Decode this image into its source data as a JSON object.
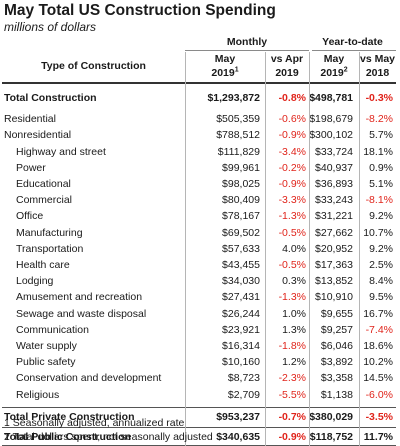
{
  "title": "May Total US Construction Spending",
  "subtitle": "millions of dollars",
  "header": {
    "type_label": "Type of Construction",
    "monthly_label": "Monthly",
    "ytd_label": "Year-to-date",
    "col1_line1": "May",
    "col1_line2": "2019",
    "col1_sup": "1",
    "col2_line1": "vs Apr",
    "col2_line2": "2019",
    "col3_line1": "May",
    "col3_line2": "2019",
    "col3_sup": "2",
    "col4_line1": "vs May",
    "col4_line2": "2018"
  },
  "rows": [
    {
      "name": "Total Construction",
      "indent": 0,
      "bold": true,
      "monthly": "$1,293,872",
      "vs_apr": "-0.8%",
      "ytd": "$498,781",
      "vs_may": "-0.3%"
    },
    {
      "name": "Residential",
      "indent": 0,
      "bold": false,
      "monthly": "$505,359",
      "vs_apr": "-0.6%",
      "ytd": "$198,679",
      "vs_may": "-8.2%"
    },
    {
      "name": "Nonresidential",
      "indent": 0,
      "bold": false,
      "monthly": "$788,512",
      "vs_apr": "-0.9%",
      "ytd": "$300,102",
      "vs_may": "5.7%"
    },
    {
      "name": "Highway and street",
      "indent": 1,
      "bold": false,
      "monthly": "$111,829",
      "vs_apr": "-3.4%",
      "ytd": "$33,724",
      "vs_may": "18.1%"
    },
    {
      "name": "Power",
      "indent": 1,
      "bold": false,
      "monthly": "$99,961",
      "vs_apr": "-0.2%",
      "ytd": "$40,937",
      "vs_may": "0.9%"
    },
    {
      "name": "Educational",
      "indent": 1,
      "bold": false,
      "monthly": "$98,025",
      "vs_apr": "-0.9%",
      "ytd": "$36,893",
      "vs_may": "5.1%"
    },
    {
      "name": "Commercial",
      "indent": 1,
      "bold": false,
      "monthly": "$80,409",
      "vs_apr": "-3.3%",
      "ytd": "$33,243",
      "vs_may": "-8.1%"
    },
    {
      "name": "Office",
      "indent": 1,
      "bold": false,
      "monthly": "$78,167",
      "vs_apr": "-1.3%",
      "ytd": "$31,221",
      "vs_may": "9.2%"
    },
    {
      "name": "Manufacturing",
      "indent": 1,
      "bold": false,
      "monthly": "$69,502",
      "vs_apr": "-0.5%",
      "ytd": "$27,662",
      "vs_may": "10.7%"
    },
    {
      "name": "Transportation",
      "indent": 1,
      "bold": false,
      "monthly": "$57,633",
      "vs_apr": "4.0%",
      "ytd": "$20,952",
      "vs_may": "9.2%"
    },
    {
      "name": "Health care",
      "indent": 1,
      "bold": false,
      "monthly": "$43,455",
      "vs_apr": "-0.5%",
      "ytd": "$17,363",
      "vs_may": "2.5%"
    },
    {
      "name": "Lodging",
      "indent": 1,
      "bold": false,
      "monthly": "$34,030",
      "vs_apr": "0.3%",
      "ytd": "$13,852",
      "vs_may": "8.4%"
    },
    {
      "name": "Amusement and recreation",
      "indent": 1,
      "bold": false,
      "monthly": "$27,431",
      "vs_apr": "-1.3%",
      "ytd": "$10,910",
      "vs_may": "9.5%"
    },
    {
      "name": "Sewage and waste disposal",
      "indent": 1,
      "bold": false,
      "monthly": "$26,244",
      "vs_apr": "1.0%",
      "ytd": "$9,655",
      "vs_may": "16.7%"
    },
    {
      "name": "Communication",
      "indent": 1,
      "bold": false,
      "monthly": "$23,921",
      "vs_apr": "1.3%",
      "ytd": "$9,257",
      "vs_may": "-7.4%"
    },
    {
      "name": "Water supply",
      "indent": 1,
      "bold": false,
      "monthly": "$16,314",
      "vs_apr": "-1.8%",
      "ytd": "$6,046",
      "vs_may": "18.6%"
    },
    {
      "name": "Public safety",
      "indent": 1,
      "bold": false,
      "monthly": "$10,160",
      "vs_apr": "1.2%",
      "ytd": "$3,892",
      "vs_may": "10.2%"
    },
    {
      "name": "Conservation and development",
      "indent": 1,
      "bold": false,
      "monthly": "$8,723",
      "vs_apr": "-2.3%",
      "ytd": "$3,358",
      "vs_may": "14.5%"
    },
    {
      "name": "Religious",
      "indent": 1,
      "bold": false,
      "monthly": "$2,709",
      "vs_apr": "-5.5%",
      "ytd": "$1,138",
      "vs_may": "-6.0%"
    },
    {
      "name": "Total Private Construction",
      "indent": 0,
      "bold": true,
      "monthly": "$953,237",
      "vs_apr": "-0.7%",
      "ytd": "$380,029",
      "vs_may": "-3.5%"
    },
    {
      "name": "Total Public Construction",
      "indent": 0,
      "bold": true,
      "monthly": "$340,635",
      "vs_apr": "-0.9%",
      "ytd": "$118,752",
      "vs_may": "11.7%"
    }
  ],
  "footnotes": [
    "1 Seasonally adjusted, annualized rate",
    "2 Total dollars spent, not seasonally adjusted"
  ],
  "colors": {
    "negative": "#e0241b",
    "text": "#1a1a1a"
  }
}
